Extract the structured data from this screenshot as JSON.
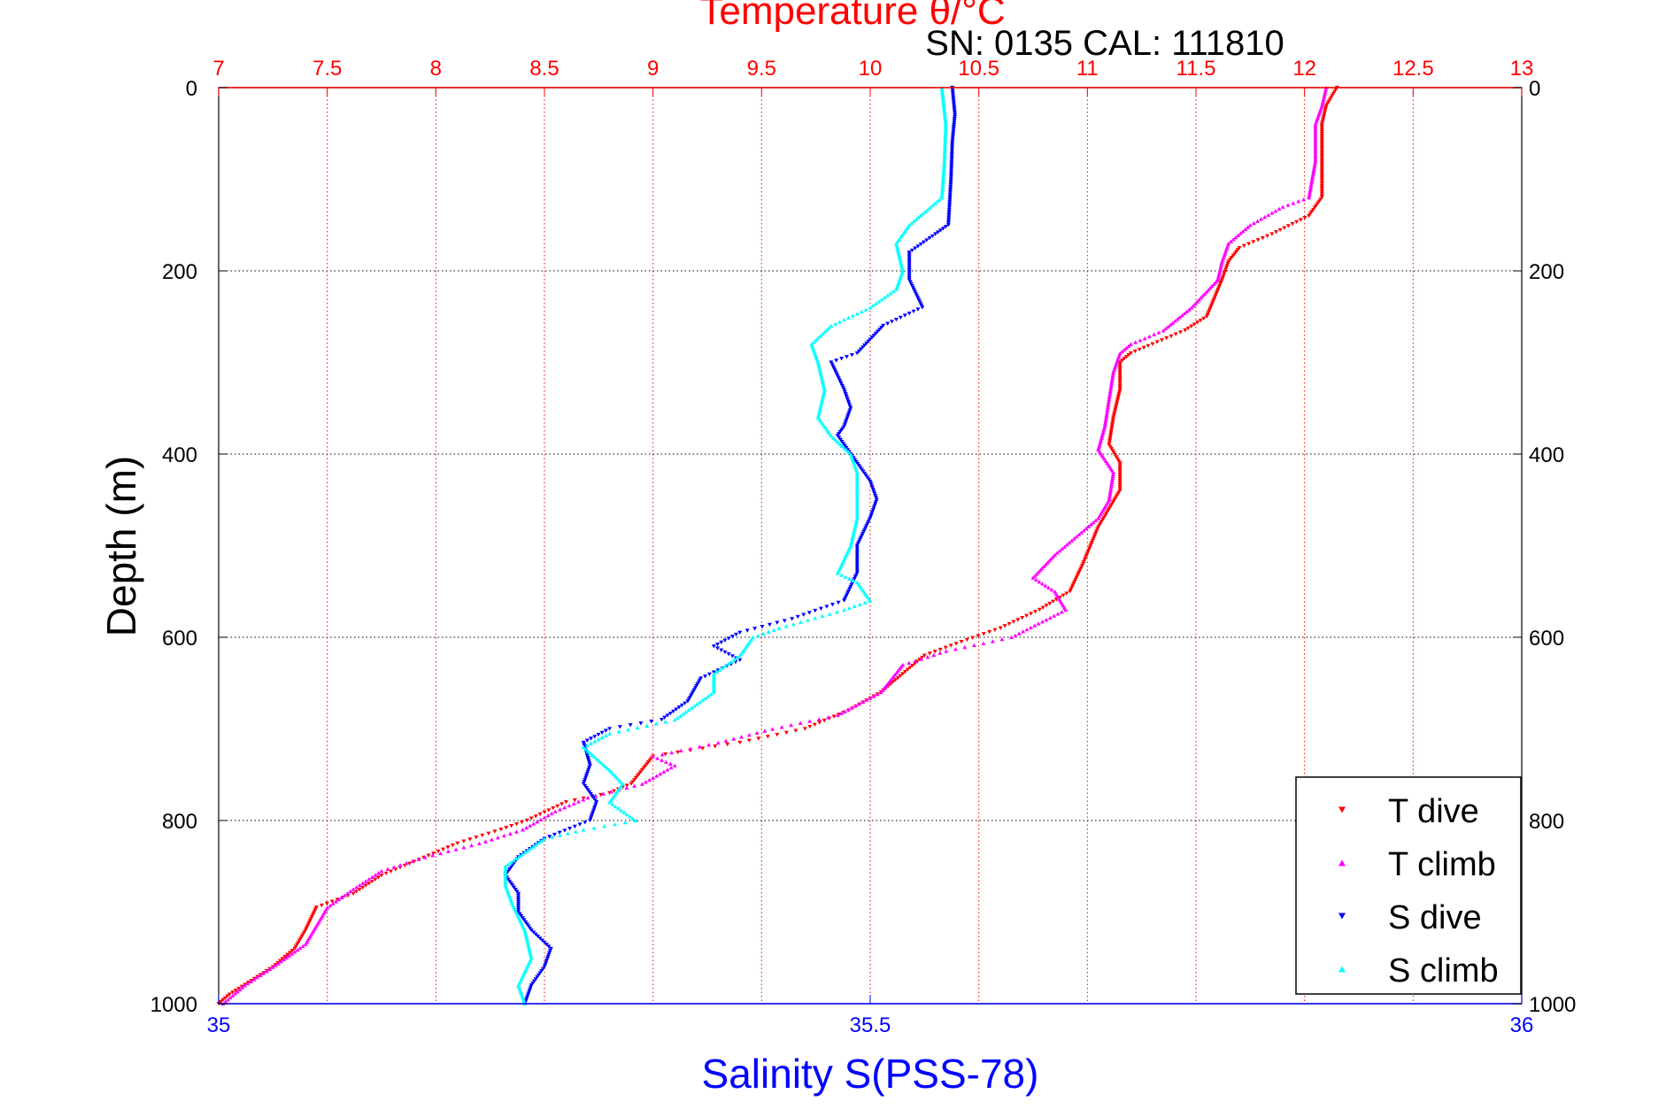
{
  "chart_data": {
    "type": "scatter",
    "title": "Temperature θ/°C",
    "subtitle": "SN: 0135  CAL: 111810",
    "ylabel": "Depth (m)",
    "x_bottom_label": "Salinity S(PSS-78)",
    "x_top_label": "Temperature θ/°C",
    "ylim": [
      0,
      1000
    ],
    "y_reversed": true,
    "y_ticks": [
      0,
      200,
      400,
      600,
      800,
      1000
    ],
    "x_bottom": {
      "range": [
        35,
        36
      ],
      "ticks": [
        35,
        35.5,
        36
      ],
      "color": "#0000ff"
    },
    "x_top": {
      "range": [
        7,
        13
      ],
      "ticks": [
        7,
        7.5,
        8,
        8.5,
        9,
        9.5,
        10,
        10.5,
        11,
        11.5,
        12,
        12.5,
        13
      ],
      "color": "#ff0000"
    },
    "grid": true,
    "legend_position": "bottom-right",
    "series": [
      {
        "name": "T dive",
        "axis": "temperature",
        "color": "#ff0000",
        "marker": "down-triangle",
        "points": [
          [
            12.15,
            0
          ],
          [
            12.1,
            20
          ],
          [
            12.08,
            40
          ],
          [
            12.08,
            80
          ],
          [
            12.08,
            120
          ],
          [
            12.02,
            140
          ],
          [
            11.85,
            160
          ],
          [
            11.7,
            175
          ],
          [
            11.65,
            190
          ],
          [
            11.62,
            210
          ],
          [
            11.55,
            250
          ],
          [
            11.45,
            265
          ],
          [
            11.3,
            280
          ],
          [
            11.2,
            290
          ],
          [
            11.15,
            300
          ],
          [
            11.15,
            330
          ],
          [
            11.12,
            360
          ],
          [
            11.1,
            390
          ],
          [
            11.15,
            410
          ],
          [
            11.15,
            440
          ],
          [
            11.05,
            480
          ],
          [
            10.98,
            520
          ],
          [
            10.92,
            550
          ],
          [
            10.78,
            570
          ],
          [
            10.6,
            590
          ],
          [
            10.42,
            605
          ],
          [
            10.25,
            620
          ],
          [
            10.15,
            640
          ],
          [
            10.05,
            660
          ],
          [
            9.9,
            680
          ],
          [
            9.7,
            700
          ],
          [
            9.4,
            715
          ],
          [
            9.0,
            730
          ],
          [
            8.9,
            760
          ],
          [
            8.8,
            770
          ],
          [
            8.6,
            780
          ],
          [
            8.42,
            800
          ],
          [
            8.3,
            810
          ],
          [
            8.1,
            825
          ],
          [
            7.9,
            845
          ],
          [
            7.75,
            860
          ],
          [
            7.62,
            880
          ],
          [
            7.45,
            895
          ],
          [
            7.4,
            920
          ],
          [
            7.35,
            940
          ],
          [
            7.25,
            960
          ],
          [
            7.15,
            975
          ],
          [
            7.05,
            990
          ],
          [
            7.0,
            1000
          ]
        ]
      },
      {
        "name": "T climb",
        "axis": "temperature",
        "color": "#ff00ff",
        "marker": "up-triangle",
        "points": [
          [
            12.1,
            0
          ],
          [
            12.08,
            20
          ],
          [
            12.05,
            40
          ],
          [
            12.05,
            80
          ],
          [
            12.02,
            120
          ],
          [
            11.9,
            130
          ],
          [
            11.75,
            150
          ],
          [
            11.65,
            170
          ],
          [
            11.62,
            190
          ],
          [
            11.6,
            210
          ],
          [
            11.48,
            240
          ],
          [
            11.35,
            265
          ],
          [
            11.2,
            280
          ],
          [
            11.15,
            290
          ],
          [
            11.12,
            310
          ],
          [
            11.1,
            340
          ],
          [
            11.08,
            370
          ],
          [
            11.05,
            395
          ],
          [
            11.12,
            420
          ],
          [
            11.1,
            450
          ],
          [
            11.05,
            470
          ],
          [
            10.95,
            490
          ],
          [
            10.85,
            510
          ],
          [
            10.75,
            535
          ],
          [
            10.85,
            550
          ],
          [
            10.9,
            570
          ],
          [
            10.65,
            600
          ],
          [
            10.35,
            615
          ],
          [
            10.15,
            630
          ],
          [
            10.05,
            660
          ],
          [
            9.85,
            685
          ],
          [
            9.55,
            700
          ],
          [
            9.3,
            715
          ],
          [
            9.0,
            730
          ],
          [
            9.1,
            740
          ],
          [
            8.95,
            760
          ],
          [
            8.7,
            775
          ],
          [
            8.55,
            790
          ],
          [
            8.4,
            810
          ],
          [
            8.2,
            825
          ],
          [
            7.95,
            840
          ],
          [
            7.75,
            855
          ],
          [
            7.62,
            875
          ],
          [
            7.5,
            895
          ],
          [
            7.45,
            915
          ],
          [
            7.4,
            935
          ],
          [
            7.25,
            960
          ],
          [
            7.12,
            980
          ],
          [
            7.02,
            1000
          ]
        ]
      },
      {
        "name": "S dive",
        "axis": "salinity",
        "color": "#0000ff",
        "marker": "down-triangle",
        "points": [
          [
            35.563,
            0
          ],
          [
            35.565,
            30
          ],
          [
            35.563,
            60
          ],
          [
            35.562,
            100
          ],
          [
            35.56,
            150
          ],
          [
            35.55,
            160
          ],
          [
            35.53,
            180
          ],
          [
            35.53,
            210
          ],
          [
            35.54,
            240
          ],
          [
            35.51,
            260
          ],
          [
            35.49,
            290
          ],
          [
            35.47,
            300
          ],
          [
            35.48,
            330
          ],
          [
            35.485,
            350
          ],
          [
            35.48,
            370
          ],
          [
            35.475,
            380
          ],
          [
            35.485,
            400
          ],
          [
            35.5,
            430
          ],
          [
            35.505,
            450
          ],
          [
            35.5,
            470
          ],
          [
            35.49,
            500
          ],
          [
            35.49,
            530
          ],
          [
            35.48,
            560
          ],
          [
            35.44,
            580
          ],
          [
            35.4,
            595
          ],
          [
            35.38,
            610
          ],
          [
            35.4,
            625
          ],
          [
            35.37,
            645
          ],
          [
            35.36,
            670
          ],
          [
            35.34,
            690
          ],
          [
            35.3,
            700
          ],
          [
            35.28,
            715
          ],
          [
            35.285,
            740
          ],
          [
            35.28,
            760
          ],
          [
            35.29,
            780
          ],
          [
            35.285,
            800
          ],
          [
            35.25,
            820
          ],
          [
            35.23,
            840
          ],
          [
            35.22,
            860
          ],
          [
            35.23,
            880
          ],
          [
            35.23,
            900
          ],
          [
            35.24,
            920
          ],
          [
            35.255,
            940
          ],
          [
            35.25,
            960
          ],
          [
            35.24,
            980
          ],
          [
            35.235,
            1000
          ]
        ]
      },
      {
        "name": "S climb",
        "axis": "salinity",
        "color": "#00ffff",
        "marker": "up-triangle",
        "points": [
          [
            35.555,
            0
          ],
          [
            35.558,
            40
          ],
          [
            35.557,
            80
          ],
          [
            35.555,
            120
          ],
          [
            35.53,
            150
          ],
          [
            35.52,
            170
          ],
          [
            35.525,
            200
          ],
          [
            35.52,
            220
          ],
          [
            35.5,
            240
          ],
          [
            35.47,
            260
          ],
          [
            35.455,
            280
          ],
          [
            35.46,
            300
          ],
          [
            35.465,
            330
          ],
          [
            35.46,
            360
          ],
          [
            35.47,
            380
          ],
          [
            35.485,
            400
          ],
          [
            35.49,
            420
          ],
          [
            35.49,
            450
          ],
          [
            35.49,
            470
          ],
          [
            35.485,
            500
          ],
          [
            35.475,
            530
          ],
          [
            35.49,
            540
          ],
          [
            35.5,
            560
          ],
          [
            35.48,
            570
          ],
          [
            35.43,
            590
          ],
          [
            35.41,
            600
          ],
          [
            35.4,
            620
          ],
          [
            35.38,
            640
          ],
          [
            35.38,
            660
          ],
          [
            35.35,
            690
          ],
          [
            35.3,
            705
          ],
          [
            35.28,
            720
          ],
          [
            35.3,
            745
          ],
          [
            35.31,
            760
          ],
          [
            35.3,
            780
          ],
          [
            35.32,
            800
          ],
          [
            35.28,
            810
          ],
          [
            35.25,
            820
          ],
          [
            35.22,
            850
          ],
          [
            35.22,
            870
          ],
          [
            35.225,
            890
          ],
          [
            35.235,
            920
          ],
          [
            35.24,
            950
          ],
          [
            35.23,
            980
          ],
          [
            35.235,
            1000
          ]
        ]
      }
    ]
  }
}
